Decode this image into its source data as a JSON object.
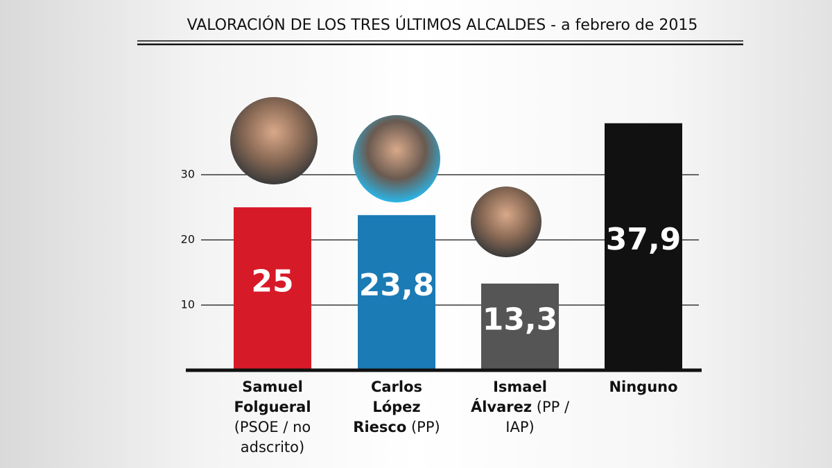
{
  "chart_data": {
    "type": "bar",
    "title": "VALORACIÓN DE LOS TRES ÚLTIMOS ALCALDES - a febrero de 2015",
    "categories": [
      "Samuel Folgueral",
      "Carlos López Riesco",
      "Ismael Álvarez",
      "Ninguno"
    ],
    "category_notes": [
      "(PSOE / no adscrito)",
      "(PP)",
      "(PP / IAP)",
      null
    ],
    "values": [
      25,
      23.8,
      13.3,
      37.9
    ],
    "value_labels": [
      "25",
      "23,8",
      "13,3",
      "37,9"
    ],
    "colors": [
      "#d71a28",
      "#1a7bb5",
      "#555555",
      "#111111"
    ],
    "ylim": [
      0,
      40
    ],
    "yticks": [
      10,
      20,
      30
    ],
    "grid": true
  }
}
